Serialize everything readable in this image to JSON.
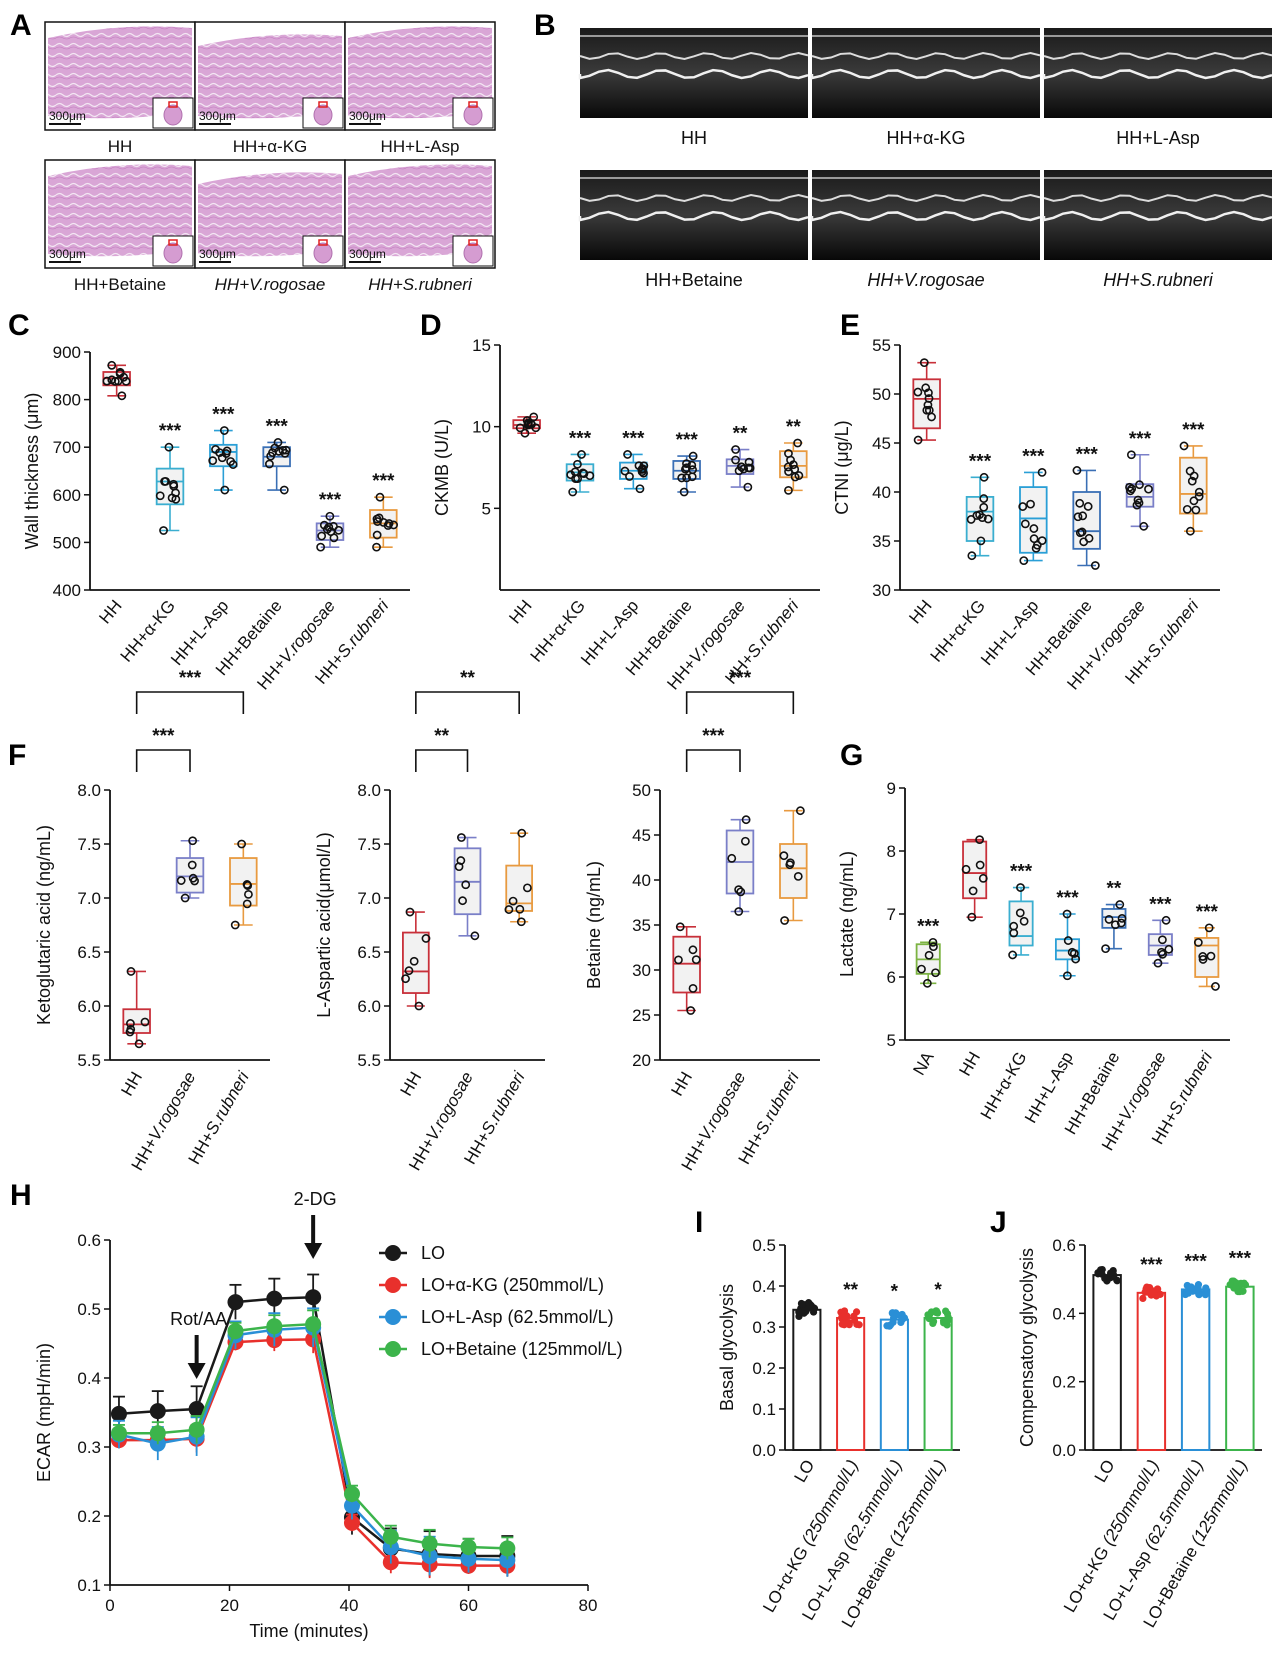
{
  "panel_letters": [
    "A",
    "B",
    "C",
    "D",
    "E",
    "F",
    "G",
    "H",
    "I",
    "J"
  ],
  "histology": {
    "scale_label": "300μm",
    "labels": [
      "HH",
      "HH+α-KG",
      "HH+L-Asp",
      "HH+Betaine",
      "HH+V.rogosae",
      "HH+S.rubneri"
    ]
  },
  "echo": {
    "labels": [
      "HH",
      "HH+α-KG",
      "HH+L-Asp",
      "HH+Betaine",
      "HH+V.rogosae",
      "HH+S.rubneri"
    ]
  },
  "colors": {
    "HH": "#c8303a",
    "aKG": "#3aaed0",
    "LAsp": "#2a9fd6",
    "Betaine": "#3a6fb5",
    "Vrog": "#7a7fc8",
    "Srub": "#e89a40",
    "NA": "#7cb342",
    "LO": "#1a1a1a",
    "LO_aKG": "#e8302c",
    "LO_LAsp": "#2a8fd6",
    "LO_Bet": "#3cb44b"
  },
  "chart_data": [
    {
      "id": "C",
      "type": "box",
      "ylabel": "Wall thickness (μm)",
      "ylim": [
        400,
        900
      ],
      "yticks": [
        400,
        500,
        600,
        700,
        800,
        900
      ],
      "categories": [
        "HH",
        "HH+α-KG",
        "HH+L-Asp",
        "HH+Betaine",
        "HH+V.rogosae",
        "HH+S.rubneri"
      ],
      "significance": [
        "",
        "***",
        "***",
        "***",
        "***",
        "***"
      ],
      "boxes": [
        {
          "min": 808,
          "q1": 830,
          "median": 845,
          "q3": 858,
          "max": 872
        },
        {
          "min": 525,
          "q1": 580,
          "median": 628,
          "q3": 655,
          "max": 700
        },
        {
          "min": 610,
          "q1": 660,
          "median": 690,
          "q3": 705,
          "max": 735
        },
        {
          "min": 610,
          "q1": 660,
          "median": 680,
          "q3": 700,
          "max": 710
        },
        {
          "min": 490,
          "q1": 505,
          "median": 525,
          "q3": 540,
          "max": 555
        },
        {
          "min": 490,
          "q1": 510,
          "median": 540,
          "q3": 568,
          "max": 595
        }
      ]
    },
    {
      "id": "D",
      "type": "box",
      "ylabel": "CKMB (U/L)",
      "ylim": [
        0,
        15
      ],
      "yticks": [
        5,
        10,
        15
      ],
      "categories": [
        "HH",
        "HH+α-KG",
        "HH+L-Asp",
        "HH+Betaine",
        "HH+V.rogosae",
        "HH+S.rubneri"
      ],
      "significance": [
        "",
        "***",
        "***",
        "***",
        "**",
        "**"
      ],
      "boxes": [
        {
          "min": 9.6,
          "q1": 9.9,
          "median": 10.1,
          "q3": 10.4,
          "max": 10.6
        },
        {
          "min": 6.0,
          "q1": 6.7,
          "median": 7.2,
          "q3": 7.7,
          "max": 8.3
        },
        {
          "min": 6.2,
          "q1": 6.8,
          "median": 7.3,
          "q3": 7.8,
          "max": 8.3
        },
        {
          "min": 6.0,
          "q1": 6.8,
          "median": 7.3,
          "q3": 7.9,
          "max": 8.2
        },
        {
          "min": 6.3,
          "q1": 7.1,
          "median": 7.6,
          "q3": 8.0,
          "max": 8.6
        },
        {
          "min": 6.1,
          "q1": 6.9,
          "median": 7.6,
          "q3": 8.5,
          "max": 9.0
        }
      ]
    },
    {
      "id": "E",
      "type": "box",
      "ylabel": "CTNI (μg/L)",
      "ylim": [
        30,
        55
      ],
      "yticks": [
        30,
        35,
        40,
        45,
        50,
        55
      ],
      "categories": [
        "HH",
        "HH+α-KG",
        "HH+L-Asp",
        "HH+Betaine",
        "HH+V.rogosae",
        "HH+S.rubneri"
      ],
      "significance": [
        "",
        "***",
        "***",
        "***",
        "***",
        "***"
      ],
      "boxes": [
        {
          "min": 45.3,
          "q1": 46.5,
          "median": 49.5,
          "q3": 51.5,
          "max": 53.2
        },
        {
          "min": 33.5,
          "q1": 35.0,
          "median": 38.0,
          "q3": 39.5,
          "max": 41.5
        },
        {
          "min": 33.0,
          "q1": 33.8,
          "median": 37.3,
          "q3": 40.5,
          "max": 42.0
        },
        {
          "min": 32.5,
          "q1": 34.2,
          "median": 36.0,
          "q3": 40.0,
          "max": 42.2
        },
        {
          "min": 36.5,
          "q1": 38.5,
          "median": 39.5,
          "q3": 40.8,
          "max": 43.8
        },
        {
          "min": 36.0,
          "q1": 37.8,
          "median": 39.8,
          "q3": 43.5,
          "max": 44.7
        }
      ]
    },
    {
      "id": "F1",
      "type": "box",
      "ylabel": "Ketoglutaric acid (ng/mL)",
      "ylim": [
        5.5,
        8.0
      ],
      "yticks": [
        5.5,
        6.0,
        6.5,
        7.0,
        7.5,
        8.0
      ],
      "categories": [
        "HH",
        "HH+V.rogosae",
        "HH+S.rubneri"
      ],
      "brackets": [
        {
          "from": 0,
          "to": 1,
          "label": "***"
        },
        {
          "from": 0,
          "to": 2,
          "label": "***"
        }
      ],
      "boxes": [
        {
          "min": 5.65,
          "q1": 5.75,
          "median": 5.83,
          "q3": 5.97,
          "max": 6.32
        },
        {
          "min": 7.0,
          "q1": 7.05,
          "median": 7.2,
          "q3": 7.37,
          "max": 7.53
        },
        {
          "min": 6.75,
          "q1": 6.93,
          "median": 7.13,
          "q3": 7.37,
          "max": 7.5
        }
      ]
    },
    {
      "id": "F2",
      "type": "box",
      "ylabel": "L-Aspartic acid(μmol/L)",
      "ylim": [
        5.5,
        8.0
      ],
      "yticks": [
        5.5,
        6.0,
        6.5,
        7.0,
        7.5,
        8.0
      ],
      "categories": [
        "HH",
        "HH+V.rogosae",
        "HH+S.rubneri"
      ],
      "brackets": [
        {
          "from": 0,
          "to": 1,
          "label": "**"
        },
        {
          "from": 0,
          "to": 2,
          "label": "**"
        }
      ],
      "boxes": [
        {
          "min": 6.0,
          "q1": 6.12,
          "median": 6.32,
          "q3": 6.68,
          "max": 6.87
        },
        {
          "min": 6.65,
          "q1": 6.85,
          "median": 7.15,
          "q3": 7.46,
          "max": 7.56
        },
        {
          "min": 6.78,
          "q1": 6.88,
          "median": 6.95,
          "q3": 7.3,
          "max": 7.6
        }
      ]
    },
    {
      "id": "F3",
      "type": "box",
      "ylabel": "Betaine (ng/mL)",
      "ylim": [
        20,
        50
      ],
      "yticks": [
        20,
        25,
        30,
        35,
        40,
        45,
        50
      ],
      "categories": [
        "HH",
        "HH+V.rogosae",
        "HH+S.rubneri"
      ],
      "brackets": [
        {
          "from": 0,
          "to": 1,
          "label": "***"
        },
        {
          "from": 0,
          "to": 2,
          "label": "***"
        }
      ],
      "boxes": [
        {
          "min": 25.5,
          "q1": 27.5,
          "median": 30.7,
          "q3": 33.7,
          "max": 34.8
        },
        {
          "min": 36.5,
          "q1": 38.5,
          "median": 42.0,
          "q3": 45.5,
          "max": 46.7
        },
        {
          "min": 35.5,
          "q1": 38.0,
          "median": 41.3,
          "q3": 44.0,
          "max": 47.7
        }
      ]
    },
    {
      "id": "G",
      "type": "box",
      "ylabel": "Lactate (ng/mL)",
      "ylim": [
        5,
        9
      ],
      "yticks": [
        5,
        6,
        7,
        8,
        9
      ],
      "categories": [
        "NA",
        "HH",
        "HH+α-KG",
        "HH+L-Asp",
        "HH+Betaine",
        "HH+V.rogosae",
        "HH+S.rubneri"
      ],
      "significance": [
        "***",
        "",
        "***",
        "***",
        "**",
        "***",
        "***"
      ],
      "boxes": [
        {
          "min": 5.9,
          "q1": 6.05,
          "median": 6.28,
          "q3": 6.52,
          "max": 6.55
        },
        {
          "min": 6.95,
          "q1": 7.25,
          "median": 7.65,
          "q3": 8.15,
          "max": 8.18
        },
        {
          "min": 6.35,
          "q1": 6.5,
          "median": 6.65,
          "q3": 7.2,
          "max": 7.42
        },
        {
          "min": 6.02,
          "q1": 6.28,
          "median": 6.42,
          "q3": 6.6,
          "max": 7.0
        },
        {
          "min": 6.45,
          "q1": 6.78,
          "median": 6.95,
          "q3": 7.08,
          "max": 7.15
        },
        {
          "min": 6.22,
          "q1": 6.35,
          "median": 6.5,
          "q3": 6.68,
          "max": 6.9
        },
        {
          "min": 5.85,
          "q1": 6.0,
          "median": 6.5,
          "q3": 6.62,
          "max": 6.78
        }
      ]
    },
    {
      "id": "H",
      "type": "line",
      "xlabel": "Time (minutes)",
      "ylabel": "ECAR (mpH/min)",
      "xlim": [
        0,
        80
      ],
      "ylim": [
        0.1,
        0.6
      ],
      "xticks": [
        0,
        20,
        40,
        60,
        80
      ],
      "yticks": [
        0.1,
        0.2,
        0.3,
        0.4,
        0.5,
        0.6
      ],
      "x": [
        1.5,
        8,
        14.5,
        21,
        27.5,
        34,
        40.5,
        47,
        53.5,
        60,
        66.5
      ],
      "annotations": [
        {
          "label": "Rot/AA",
          "x": 14.5
        },
        {
          "label": "2-DG",
          "x": 34
        }
      ],
      "series": [
        {
          "name": "LO",
          "values": [
            0.348,
            0.352,
            0.355,
            0.51,
            0.515,
            0.517,
            0.198,
            0.153,
            0.145,
            0.142,
            0.142
          ]
        },
        {
          "name": "LO+α-KG (250mmol/L)",
          "values": [
            0.31,
            0.31,
            0.312,
            0.452,
            0.455,
            0.456,
            0.19,
            0.133,
            0.13,
            0.128,
            0.128
          ]
        },
        {
          "name": "LO+L-Asp (62.5mmol/L)",
          "values": [
            0.318,
            0.305,
            0.315,
            0.462,
            0.47,
            0.473,
            0.215,
            0.155,
            0.142,
            0.138,
            0.136
          ]
        },
        {
          "name": "LO+Betaine (125mmol/L)",
          "values": [
            0.32,
            0.32,
            0.325,
            0.468,
            0.475,
            0.478,
            0.232,
            0.17,
            0.16,
            0.155,
            0.153
          ]
        }
      ]
    },
    {
      "id": "I",
      "type": "bar",
      "ylabel": "Basal glycolysis",
      "ylim": [
        0,
        0.5
      ],
      "yticks": [
        0.0,
        0.1,
        0.2,
        0.3,
        0.4,
        0.5
      ],
      "categories": [
        "LO",
        "LO+α-KG (250mmol/L)",
        "LO+L-Asp (62.5mmol/L)",
        "LO+Betaine (125mmol/L)"
      ],
      "values": [
        0.342,
        0.322,
        0.318,
        0.322
      ],
      "significance": [
        "",
        "**",
        "*",
        "*"
      ]
    },
    {
      "id": "J",
      "type": "bar",
      "ylabel": "Compensatory glycolysis",
      "ylim": [
        0,
        0.6
      ],
      "yticks": [
        0.0,
        0.2,
        0.4,
        0.6
      ],
      "categories": [
        "LO",
        "LO+α-KG (250mmol/L)",
        "LO+L-Asp (62.5mmol/L)",
        "LO+Betaine (125mmol/L)"
      ],
      "values": [
        0.512,
        0.46,
        0.47,
        0.478
      ],
      "significance": [
        "",
        "***",
        "***",
        "***"
      ]
    }
  ]
}
